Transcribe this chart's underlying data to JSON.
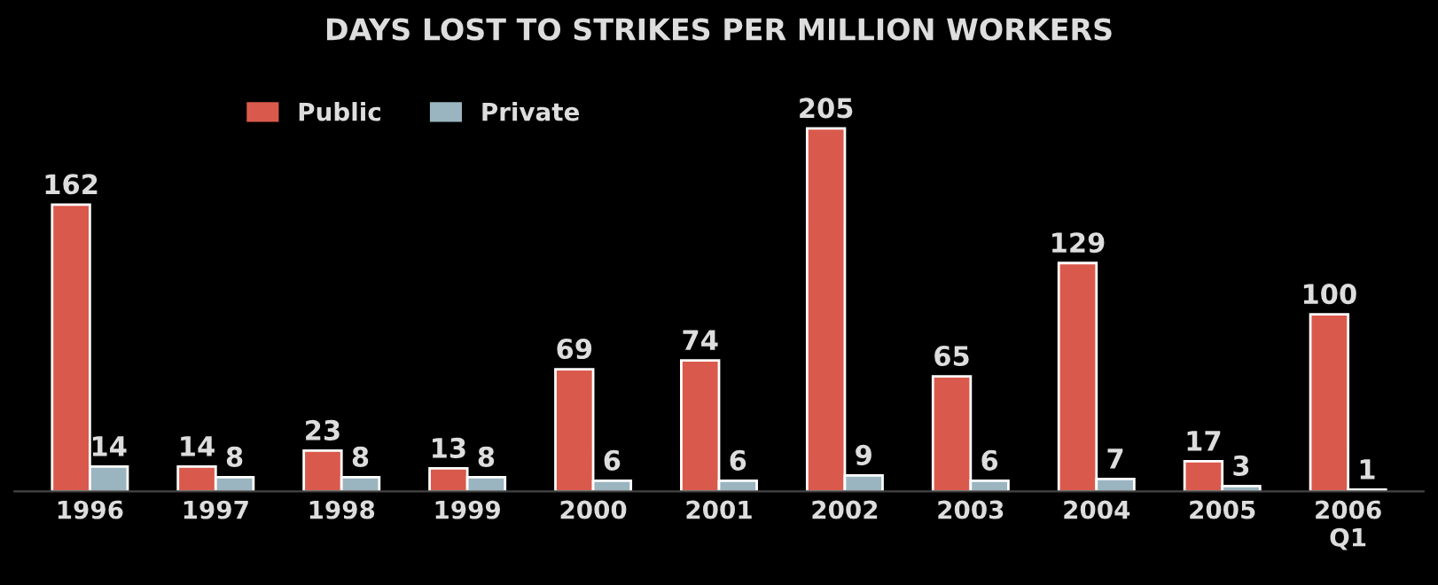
{
  "chart_data": {
    "type": "bar",
    "title": "DAYS LOST TO STRIKES PER MILLION WORKERS",
    "categories": [
      "1996",
      "1997",
      "1998",
      "1999",
      "2000",
      "2001",
      "2002",
      "2003",
      "2004",
      "2005",
      "2006\nQ1"
    ],
    "series": [
      {
        "name": "Public",
        "color": "#d95a4c",
        "values": [
          162,
          14,
          23,
          13,
          69,
          74,
          205,
          65,
          129,
          17,
          100
        ]
      },
      {
        "name": "Private",
        "color": "#9bb5c0",
        "values": [
          14,
          8,
          8,
          8,
          6,
          6,
          9,
          6,
          7,
          3,
          1
        ]
      }
    ],
    "data_labels": true,
    "legend": "top left",
    "grid": false
  }
}
